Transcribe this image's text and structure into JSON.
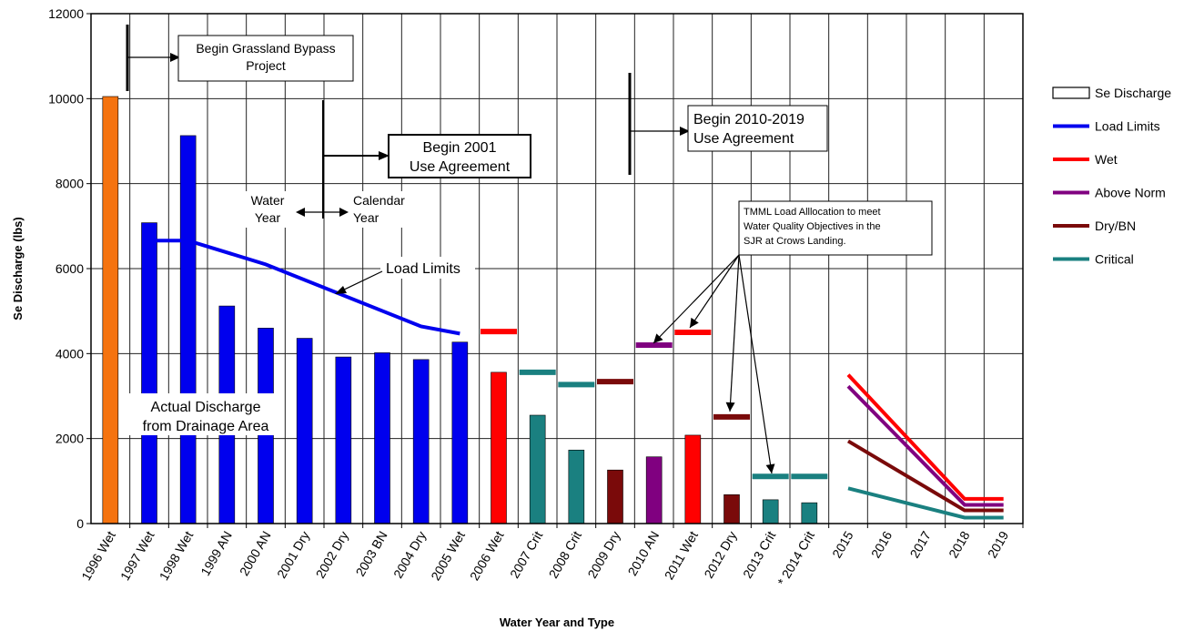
{
  "chart_data": {
    "type": "bar",
    "ylabel": "Se Discharge (lbs)",
    "xlabel": "Water Year and Type",
    "ylim": [
      0,
      12000
    ],
    "yticks": [
      0,
      2000,
      4000,
      6000,
      8000,
      10000,
      12000
    ],
    "grid": true,
    "legend_position": "right",
    "categories": [
      "1996 Wet",
      "1997 Wet",
      "1998 Wet",
      "1999 AN",
      "2000 AN",
      "2001 Dry",
      "2002 Dry",
      "2003 BN",
      "2004 Dry",
      "2005 Wet",
      "2006 Wet",
      "2007 Crit",
      "2008 Crit",
      "2009 Dry",
      "2010 AN",
      "2011 Wet",
      "2012 Dry",
      "2013 Crit",
      "* 2014 Crit",
      "2015",
      "2016",
      "2017",
      "2018",
      "2019"
    ],
    "bars": [
      {
        "category": "1996 Wet",
        "value": 10050,
        "color": "#f5730f"
      },
      {
        "category": "1997 Wet",
        "value": 7080,
        "color": "#0000ee"
      },
      {
        "category": "1998 Wet",
        "value": 9130,
        "color": "#0000ee"
      },
      {
        "category": "1999 AN",
        "value": 5120,
        "color": "#0000ee"
      },
      {
        "category": "2000 AN",
        "value": 4600,
        "color": "#0000ee"
      },
      {
        "category": "2001 Dry",
        "value": 4360,
        "color": "#0000ee"
      },
      {
        "category": "2002 Dry",
        "value": 3920,
        "color": "#0000ee"
      },
      {
        "category": "2003 BN",
        "value": 4020,
        "color": "#0000ee"
      },
      {
        "category": "2004 Dry",
        "value": 3860,
        "color": "#0000ee"
      },
      {
        "category": "2005 Wet",
        "value": 4270,
        "color": "#0000ee"
      },
      {
        "category": "2006 Wet",
        "value": 3560,
        "color": "#ff0000"
      },
      {
        "category": "2007 Crit",
        "value": 2550,
        "color": "#1a8080"
      },
      {
        "category": "2008 Crit",
        "value": 1730,
        "color": "#1a8080"
      },
      {
        "category": "2009 Dry",
        "value": 1260,
        "color": "#7a0a0a"
      },
      {
        "category": "2010 AN",
        "value": 1570,
        "color": "#800080"
      },
      {
        "category": "2011 Wet",
        "value": 2080,
        "color": "#ff0000"
      },
      {
        "category": "2012 Dry",
        "value": 680,
        "color": "#7a0a0a"
      },
      {
        "category": "2013 Crit",
        "value": 560,
        "color": "#1a8080"
      },
      {
        "category": "* 2014 Crit",
        "value": 490,
        "color": "#1a8080"
      }
    ],
    "load_limits": {
      "color": "#0000ee",
      "points": [
        [
          "1997 Wet",
          6660
        ],
        [
          "1998 Wet",
          6660
        ],
        [
          "2000 AN",
          6100
        ],
        [
          "2004 Dry",
          4640
        ],
        [
          "2005 Wet",
          4470
        ]
      ]
    },
    "tmml_segments": [
      {
        "category": "2006 Wet",
        "value": 4520,
        "color": "#ff0000"
      },
      {
        "category": "2007 Crit",
        "value": 3560,
        "color": "#1a8080"
      },
      {
        "category": "2008 Crit",
        "value": 3270,
        "color": "#1a8080"
      },
      {
        "category": "2009 Dry",
        "value": 3340,
        "color": "#7a0a0a"
      },
      {
        "category": "2010 AN",
        "value": 4200,
        "color": "#800080"
      },
      {
        "category": "2011 Wet",
        "value": 4500,
        "color": "#ff0000"
      },
      {
        "category": "2012 Dry",
        "value": 2510,
        "color": "#7a0a0a"
      },
      {
        "category": "2013 Crit",
        "value": 1110,
        "color": "#1a8080"
      },
      {
        "category": "* 2014 Crit",
        "value": 1110,
        "color": "#1a8080"
      }
    ],
    "series": [
      {
        "name": "Wet",
        "color": "#ff0000",
        "points": [
          [
            "2015",
            3500
          ],
          [
            "2018",
            580
          ],
          [
            "2019",
            580
          ]
        ]
      },
      {
        "name": "Above Norm",
        "color": "#800080",
        "points": [
          [
            "2015",
            3230
          ],
          [
            "2018",
            440
          ],
          [
            "2019",
            440
          ]
        ]
      },
      {
        "name": "Dry/BN",
        "color": "#7a0a0a",
        "points": [
          [
            "2015",
            1940
          ],
          [
            "2018",
            310
          ],
          [
            "2019",
            310
          ]
        ]
      },
      {
        "name": "Critical",
        "color": "#1a8080",
        "points": [
          [
            "2015",
            830
          ],
          [
            "2018",
            140
          ],
          [
            "2019",
            140
          ]
        ]
      }
    ],
    "legend": [
      {
        "label": "Se Discharge",
        "kind": "box",
        "color": "#000000"
      },
      {
        "label": "Load Limits",
        "kind": "line",
        "color": "#0000ee"
      },
      {
        "label": "Wet",
        "kind": "line",
        "color": "#ff0000"
      },
      {
        "label": "Above Norm",
        "kind": "line",
        "color": "#800080"
      },
      {
        "label": "Dry/BN",
        "kind": "line",
        "color": "#7a0a0a"
      },
      {
        "label": "Critical",
        "kind": "line",
        "color": "#1a8080"
      }
    ],
    "annotations": {
      "grassland": [
        "Begin Grassland Bypass",
        "Project"
      ],
      "use2001": [
        "Begin 2001",
        "Use Agreement"
      ],
      "use2010": [
        "Begin 2010-2019",
        "Use Agreement"
      ],
      "water_year": [
        "Water",
        "Year"
      ],
      "calendar_year": [
        "Calendar",
        "Year"
      ],
      "load_limits": "Load Limits",
      "tmml": [
        "TMML Load Alllocation to meet",
        "Water Quality Objectives in the",
        "SJR at Crows Landing."
      ],
      "actual": [
        "Actual Discharge",
        "from Drainage Area"
      ]
    }
  }
}
